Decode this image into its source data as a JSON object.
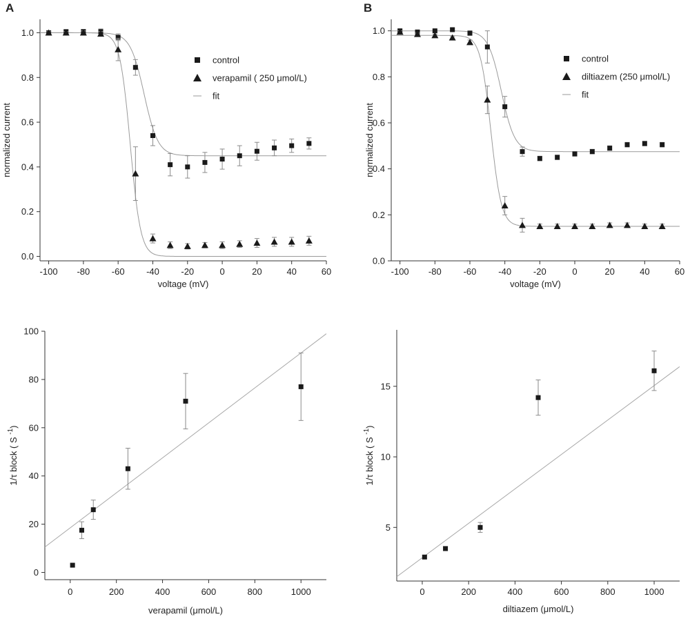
{
  "panel_labels": [
    "A",
    "B"
  ],
  "chart_data": [
    {
      "id": "A-top",
      "type": "scatter",
      "xlabel": "voltage (mV)",
      "ylabel": "normalized current",
      "xlim": [
        -105,
        60
      ],
      "ylim": [
        -0.02,
        1.06
      ],
      "xticks": [
        -100,
        -80,
        -60,
        -40,
        -20,
        0,
        20,
        40,
        60
      ],
      "yticks": [
        0.0,
        0.2,
        0.4,
        0.6,
        0.8,
        1.0
      ],
      "ytick_decimals": 1,
      "legend": {
        "placement": "top-right",
        "entries": [
          {
            "label": "control",
            "marker": "square"
          },
          {
            "label": "verapamil ( 250 μmol/L)",
            "marker": "triangle"
          },
          {
            "label": "fit",
            "marker": "line"
          }
        ]
      },
      "series": [
        {
          "name": "control",
          "marker": "square",
          "x": [
            -100,
            -90,
            -80,
            -70,
            -60,
            -50,
            -40,
            -30,
            -20,
            -10,
            0,
            10,
            20,
            30,
            40,
            50
          ],
          "y": [
            1.0,
            1.005,
            1.005,
            1.005,
            0.98,
            0.845,
            0.54,
            0.41,
            0.4,
            0.42,
            0.435,
            0.45,
            0.47,
            0.485,
            0.495,
            0.505
          ],
          "err": [
            0.005,
            0.007,
            0.01,
            0.012,
            0.015,
            0.035,
            0.045,
            0.05,
            0.05,
            0.045,
            0.045,
            0.045,
            0.04,
            0.035,
            0.03,
            0.025
          ],
          "fit": {
            "top": 1.0,
            "bottom": 0.45,
            "v_half": -45,
            "slope": 4.0
          }
        },
        {
          "name": "verapamil ( 250 μmol/L)",
          "marker": "triangle",
          "x": [
            -100,
            -90,
            -80,
            -70,
            -60,
            -50,
            -40,
            -30,
            -20,
            -10,
            0,
            10,
            20,
            30,
            40,
            50
          ],
          "y": [
            1.0,
            1.0,
            1.0,
            0.995,
            0.925,
            0.37,
            0.08,
            0.05,
            0.045,
            0.05,
            0.05,
            0.055,
            0.06,
            0.065,
            0.065,
            0.07
          ],
          "err": [
            0.005,
            0.005,
            0.008,
            0.01,
            0.05,
            0.12,
            0.02,
            0.015,
            0.012,
            0.012,
            0.015,
            0.015,
            0.02,
            0.02,
            0.02,
            0.02
          ],
          "fit": {
            "top": 1.0,
            "bottom": 0.0,
            "v_half": -53,
            "slope": 3.0
          }
        }
      ]
    },
    {
      "id": "B-top",
      "type": "scatter",
      "xlabel": "voltage (mV)",
      "ylabel": "normalized current",
      "xlim": [
        -105,
        60
      ],
      "ylim": [
        0.0,
        1.05
      ],
      "xticks": [
        -100,
        -80,
        -60,
        -40,
        -20,
        0,
        20,
        40,
        60
      ],
      "yticks": [
        0.0,
        0.2,
        0.4,
        0.6,
        0.8,
        1.0
      ],
      "ytick_decimals": 1,
      "legend": {
        "placement": "top-right",
        "entries": [
          {
            "label": "control",
            "marker": "square"
          },
          {
            "label": "diltiazem (250 μmol/L)",
            "marker": "triangle"
          },
          {
            "label": "fit",
            "marker": "line"
          }
        ]
      },
      "series": [
        {
          "name": "control",
          "marker": "square",
          "x": [
            -100,
            -90,
            -80,
            -70,
            -60,
            -50,
            -40,
            -30,
            -20,
            -10,
            0,
            10,
            20,
            30,
            40,
            50
          ],
          "y": [
            1.0,
            0.995,
            1.0,
            1.005,
            0.99,
            0.93,
            0.67,
            0.475,
            0.445,
            0.45,
            0.465,
            0.475,
            0.49,
            0.505,
            0.51,
            0.505
          ],
          "err": [
            0.005,
            0.005,
            0.005,
            0.005,
            0.01,
            0.07,
            0.045,
            0.02,
            0.01,
            0.01,
            0.01,
            0.01,
            0.01,
            0.01,
            0.01,
            0.01
          ],
          "fit": {
            "top": 1.0,
            "bottom": 0.475,
            "v_half": -42,
            "slope": 3.8
          }
        },
        {
          "name": "diltiazem (250 μmol/L)",
          "marker": "triangle",
          "x": [
            -100,
            -90,
            -80,
            -70,
            -60,
            -50,
            -40,
            -30,
            -20,
            -10,
            0,
            10,
            20,
            30,
            40,
            50
          ],
          "y": [
            0.995,
            0.985,
            0.98,
            0.97,
            0.95,
            0.7,
            0.24,
            0.155,
            0.15,
            0.15,
            0.15,
            0.15,
            0.155,
            0.155,
            0.15,
            0.15
          ],
          "err": [
            0.005,
            0.005,
            0.005,
            0.005,
            0.01,
            0.06,
            0.04,
            0.03,
            0.01,
            0.01,
            0.01,
            0.01,
            0.01,
            0.01,
            0.01,
            0.01
          ],
          "fit": {
            "top": 0.98,
            "bottom": 0.15,
            "v_half": -48,
            "slope": 3.0
          }
        }
      ]
    },
    {
      "id": "A-bottom",
      "type": "scatter",
      "xlabel": "verapamil (μmol/L)",
      "ylabel_parts": [
        "1/τ  block ( S ",
        "-1",
        ")"
      ],
      "xlim": [
        -110,
        1110
      ],
      "ylim": [
        -3,
        100
      ],
      "xticks": [
        0,
        200,
        400,
        600,
        800,
        1000
      ],
      "yticks": [
        0,
        20,
        40,
        60,
        80,
        100
      ],
      "ytick_decimals": 0,
      "series": [
        {
          "name": "",
          "marker": "square",
          "x": [
            10,
            50,
            100,
            250,
            500,
            1000
          ],
          "y": [
            3,
            17.5,
            26,
            43,
            71,
            77
          ],
          "err": [
            0.5,
            3.5,
            4,
            8.5,
            11.5,
            14
          ],
          "fit_line": {
            "slope": 0.0725,
            "intercept": 18.5
          }
        }
      ]
    },
    {
      "id": "B-bottom",
      "type": "scatter",
      "xlabel": "diltiazem (μmol/L)",
      "ylabel_parts": [
        "1/τ  block ( S ",
        "-1",
        ")"
      ],
      "xlim": [
        -110,
        1110
      ],
      "ylim": [
        1.2,
        19.0
      ],
      "xticks": [
        0,
        200,
        400,
        600,
        800,
        1000
      ],
      "yticks": [
        5,
        10,
        15
      ],
      "ytick_decimals": 0,
      "series": [
        {
          "name": "",
          "marker": "square",
          "x": [
            10,
            100,
            250,
            500,
            1000
          ],
          "y": [
            2.9,
            3.5,
            5.0,
            14.2,
            16.1
          ],
          "err": [
            0.1,
            0.15,
            0.35,
            1.25,
            1.4
          ],
          "fit_line": {
            "slope": 0.0122,
            "intercept": 2.85
          }
        }
      ]
    }
  ]
}
